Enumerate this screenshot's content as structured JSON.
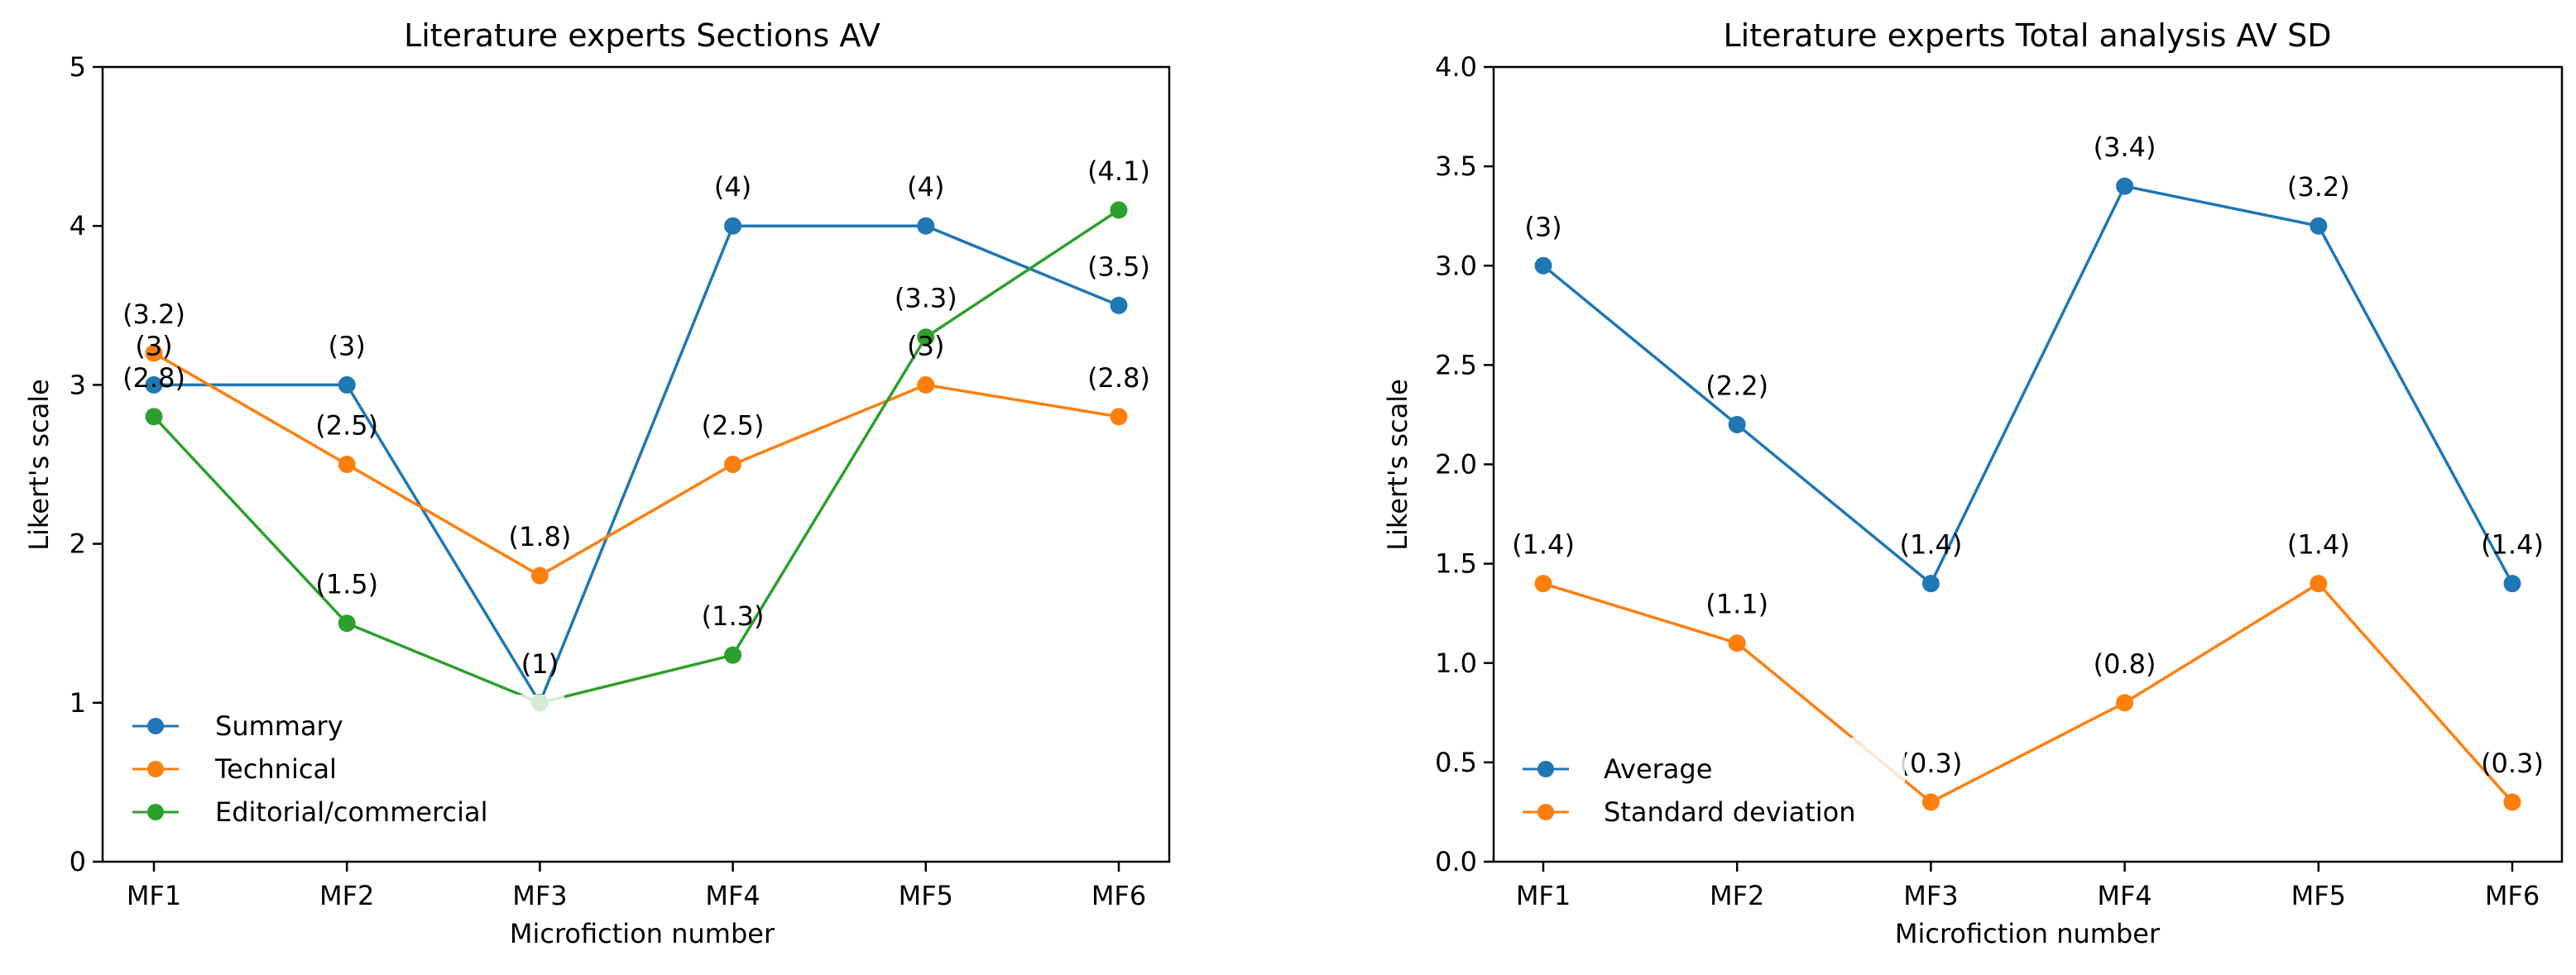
{
  "chart_data": [
    {
      "type": "line",
      "title": "Literature experts Sections AV",
      "xlabel": "Microfiction number",
      "ylabel": "Likert's scale",
      "categories": [
        "MF1",
        "MF2",
        "MF3",
        "MF4",
        "MF5",
        "MF6"
      ],
      "ylim": [
        0,
        5
      ],
      "yticks": [
        0,
        1,
        2,
        3,
        4,
        5
      ],
      "ytick_labels": [
        "0",
        "1",
        "2",
        "3",
        "4",
        "5"
      ],
      "legend_position": "lower-left",
      "series": [
        {
          "name": "Summary",
          "color": "#1f77b4",
          "values": [
            3,
            3,
            1,
            4,
            4,
            3.5
          ],
          "labels": [
            "(3)",
            "(3)",
            "(1)",
            "(4)",
            "(4)",
            "(3.5)"
          ]
        },
        {
          "name": "Technical",
          "color": "#ff7f0e",
          "values": [
            3.2,
            2.5,
            1.8,
            2.5,
            3,
            2.8
          ],
          "labels": [
            "(3.2)",
            "(2.5)",
            "(1.8)",
            "(2.5)",
            "(3)",
            "(2.8)"
          ]
        },
        {
          "name": "Editorial/commercial",
          "color": "#2ca02c",
          "values": [
            2.8,
            1.5,
            1,
            1.3,
            3.3,
            4.1
          ],
          "labels": [
            "(2.8)",
            "(1.5)",
            "(1)",
            "(1.3)",
            "(3.3)",
            "(4.1)"
          ]
        }
      ]
    },
    {
      "type": "line",
      "title": "Literature experts Total analysis AV SD",
      "xlabel": "Microfiction number",
      "ylabel": "Likert's scale",
      "categories": [
        "MF1",
        "MF2",
        "MF3",
        "MF4",
        "MF5",
        "MF6"
      ],
      "ylim": [
        0,
        4
      ],
      "yticks": [
        0,
        0.5,
        1,
        1.5,
        2,
        2.5,
        3,
        3.5,
        4
      ],
      "ytick_labels": [
        "0.0",
        "0.5",
        "1.0",
        "1.5",
        "2.0",
        "2.5",
        "3.0",
        "3.5",
        "4.0"
      ],
      "legend_position": "lower-left",
      "series": [
        {
          "name": "Average",
          "color": "#1f77b4",
          "values": [
            3,
            2.2,
            1.4,
            3.4,
            3.2,
            1.4
          ],
          "labels": [
            "(3)",
            "(2.2)",
            "(1.4)",
            "(3.4)",
            "(3.2)",
            "(1.4)"
          ]
        },
        {
          "name": "Standard deviation",
          "color": "#ff7f0e",
          "values": [
            1.4,
            1.1,
            0.3,
            0.8,
            1.4,
            0.3
          ],
          "labels": [
            "(1.4)",
            "(1.1)",
            "(0.3)",
            "(0.8)",
            "(1.4)",
            "(0.3)"
          ]
        }
      ]
    }
  ]
}
